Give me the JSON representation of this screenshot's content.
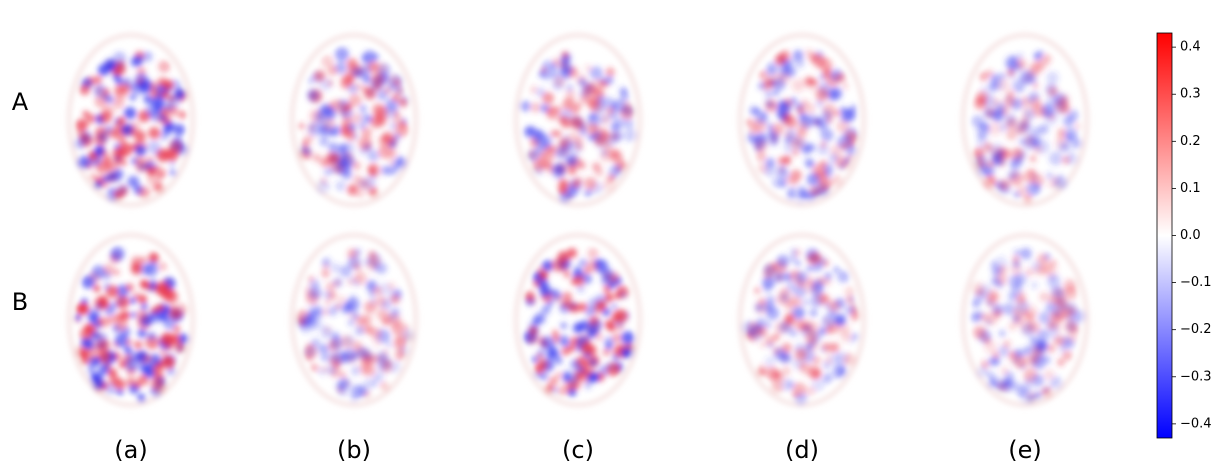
{
  "row_labels": [
    "A",
    "B"
  ],
  "column_labels": [
    "(a)",
    "(b)",
    "(c)",
    "(d)",
    "(e)"
  ],
  "colorbar": {
    "lim": [
      -0.43,
      0.43
    ],
    "ticks": [
      0.4,
      0.3,
      0.2,
      0.1,
      {
        "value": 0,
        "label": "0.0"
      },
      {
        "value": -0.1,
        "label": "−0.1"
      },
      {
        "value": -0.2,
        "label": "−0.2"
      },
      {
        "value": -0.3,
        "label": "−0.3"
      },
      {
        "value": -0.4,
        "label": "−0.4"
      }
    ]
  }
}
